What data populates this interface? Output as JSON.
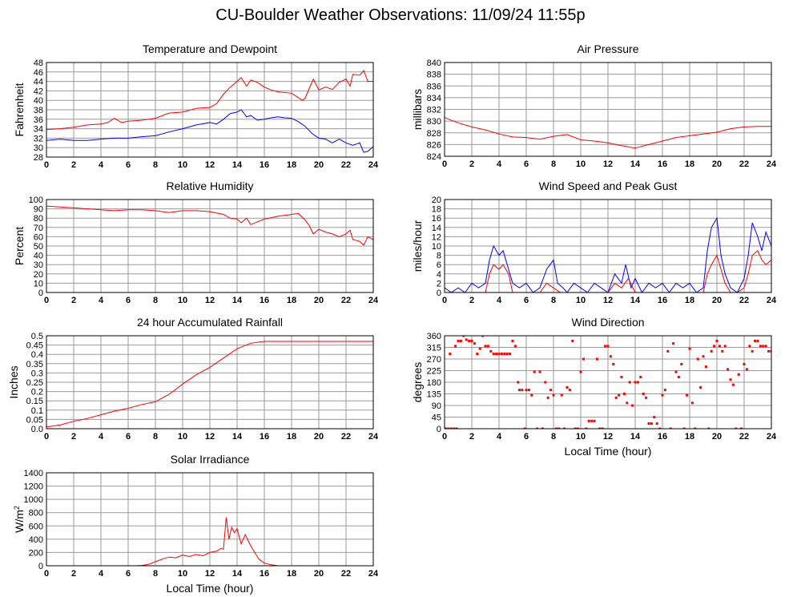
{
  "page": {
    "title": "CU-Boulder Weather Observations: 11/09/24 11:55p"
  },
  "chart_data": [
    {
      "id": "temperature",
      "type": "line",
      "title": "Temperature and Dewpoint",
      "xlabel": "",
      "ylabel": "Fahrenheit",
      "xlim": [
        0,
        24
      ],
      "ylim": [
        28,
        48
      ],
      "xticks": [
        0,
        2,
        4,
        6,
        8,
        10,
        12,
        14,
        16,
        18,
        20,
        22,
        24
      ],
      "yticks": [
        28,
        30,
        32,
        34,
        36,
        38,
        40,
        42,
        44,
        46,
        48
      ],
      "grid": true,
      "series": [
        {
          "color": "#ff0000",
          "x": [
            0,
            1,
            2,
            3,
            4,
            4.5,
            5,
            5.5,
            6,
            7,
            8,
            9,
            10,
            11,
            12,
            12.5,
            13,
            13.5,
            14,
            14.3,
            14.7,
            15,
            15.5,
            16,
            16.5,
            17,
            18,
            18.8,
            19,
            19.3,
            19.6,
            20,
            20.5,
            21,
            21.5,
            22,
            22.3,
            22.5,
            23,
            23.3,
            23.6,
            24
          ],
          "y": [
            33.8,
            34.0,
            34.3,
            34.8,
            35.0,
            35.3,
            36.2,
            35.3,
            35.6,
            35.8,
            36.2,
            37.3,
            37.5,
            38.3,
            38.5,
            39.3,
            41.3,
            42.8,
            44.0,
            44.8,
            43.0,
            44.3,
            43.8,
            42.8,
            42.2,
            41.8,
            41.5,
            40.0,
            40.5,
            42.5,
            44.5,
            42.2,
            42.8,
            42.3,
            43.8,
            44.5,
            43.0,
            45.5,
            45.3,
            46.3,
            44.0,
            44.0
          ]
        },
        {
          "color": "#0000ff",
          "x": [
            0,
            1,
            2,
            3,
            4,
            5,
            6,
            7,
            8,
            9,
            10,
            11,
            12,
            12.5,
            13,
            13.5,
            14,
            14.3,
            14.7,
            15,
            15.5,
            16,
            16.5,
            17,
            17.5,
            18,
            18.5,
            19,
            19.5,
            20,
            20.5,
            21,
            21.5,
            22,
            22.5,
            23,
            23.3,
            23.6,
            24
          ],
          "y": [
            31.5,
            31.8,
            31.5,
            31.5,
            31.8,
            32.0,
            32.0,
            32.3,
            32.5,
            33.3,
            34.0,
            34.8,
            35.3,
            35.0,
            36.0,
            37.2,
            37.5,
            38.0,
            36.5,
            36.8,
            35.8,
            36.0,
            36.3,
            36.5,
            36.3,
            36.2,
            35.5,
            34.5,
            33.0,
            32.0,
            31.8,
            31.0,
            31.8,
            31.0,
            30.5,
            31.0,
            29.0,
            29.2,
            30.2
          ]
        }
      ]
    },
    {
      "id": "pressure",
      "type": "line",
      "title": "Air Pressure",
      "xlabel": "",
      "ylabel": "millibars",
      "xlim": [
        0,
        24
      ],
      "ylim": [
        824,
        840
      ],
      "xticks": [
        0,
        2,
        4,
        6,
        8,
        10,
        12,
        14,
        16,
        18,
        20,
        22,
        24
      ],
      "yticks": [
        824,
        826,
        828,
        830,
        832,
        834,
        836,
        838,
        840
      ],
      "grid": true,
      "series": [
        {
          "color": "#ff0000",
          "x": [
            0,
            1,
            2,
            3,
            4,
            5,
            6,
            7,
            8,
            9,
            10,
            11,
            12,
            13,
            14,
            15,
            16,
            17,
            18,
            19,
            20,
            21,
            22,
            23,
            24
          ],
          "y": [
            830.6,
            829.7,
            829.0,
            828.5,
            827.8,
            827.3,
            827.2,
            826.9,
            827.4,
            827.7,
            826.8,
            826.6,
            826.3,
            825.8,
            825.4,
            826.0,
            826.6,
            827.2,
            827.5,
            827.8,
            828.1,
            828.7,
            829.0,
            829.1,
            829.1
          ]
        }
      ]
    },
    {
      "id": "humidity",
      "type": "line",
      "title": "Relative Humidity",
      "xlabel": "",
      "ylabel": "Percent",
      "xlim": [
        0,
        24
      ],
      "ylim": [
        0,
        100
      ],
      "xticks": [
        0,
        2,
        4,
        6,
        8,
        10,
        12,
        14,
        16,
        18,
        20,
        22,
        24
      ],
      "yticks": [
        0,
        10,
        20,
        30,
        40,
        50,
        60,
        70,
        80,
        90,
        100
      ],
      "grid": true,
      "series": [
        {
          "color": "#ff0000",
          "x": [
            0,
            1,
            2,
            3,
            4,
            5,
            6,
            7,
            8,
            9,
            10,
            11,
            12,
            13,
            13.5,
            14,
            14.3,
            14.7,
            15,
            15.5,
            16,
            17,
            18,
            18.5,
            19,
            19.3,
            19.6,
            20,
            20.5,
            21,
            21.5,
            22,
            22.3,
            22.5,
            23,
            23.3,
            23.6,
            24
          ],
          "y": [
            93,
            92,
            91,
            90,
            89,
            88,
            89,
            89,
            88,
            86,
            88,
            88,
            87,
            84,
            80,
            79,
            75,
            80,
            73,
            76,
            79,
            82,
            84,
            85,
            78,
            72,
            63,
            68,
            65,
            63,
            60,
            63,
            67,
            57,
            55,
            51,
            60,
            57
          ]
        }
      ]
    },
    {
      "id": "wind-speed",
      "type": "line",
      "title": "Wind Speed and Peak Gust",
      "xlabel": "",
      "ylabel": "miles/hour",
      "xlim": [
        0,
        24
      ],
      "ylim": [
        0,
        20
      ],
      "xticks": [
        0,
        2,
        4,
        6,
        8,
        10,
        12,
        14,
        16,
        18,
        20,
        22,
        24
      ],
      "yticks": [
        0,
        2,
        4,
        6,
        8,
        10,
        12,
        14,
        16,
        18,
        20
      ],
      "grid": true,
      "series": [
        {
          "color": "#0000ff",
          "x": [
            0,
            0.5,
            1,
            1.5,
            2,
            2.5,
            3,
            3.3,
            3.6,
            4,
            4.3,
            4.7,
            5,
            5.5,
            6,
            6.5,
            7,
            7.5,
            8,
            8.3,
            8.7,
            9,
            9.5,
            10,
            10.5,
            11,
            11.5,
            12,
            12.5,
            13,
            13.3,
            13.7,
            14,
            14.5,
            15,
            15.5,
            16,
            16.5,
            17,
            17.5,
            18,
            18.5,
            19,
            19.3,
            19.6,
            20,
            20.3,
            20.6,
            21,
            21.5,
            22,
            22.3,
            22.6,
            23,
            23.3,
            23.6,
            24
          ],
          "y": [
            1,
            0,
            1,
            0,
            2,
            1,
            2,
            7,
            10,
            8,
            9,
            5,
            2,
            1,
            2,
            0,
            1,
            5,
            7,
            2,
            1,
            0,
            2,
            1,
            0,
            2,
            1,
            0,
            4,
            2,
            6,
            1,
            3,
            0,
            2,
            1,
            2,
            0,
            2,
            1,
            2,
            0,
            1,
            9,
            14,
            16,
            8,
            4,
            1,
            0,
            3,
            8,
            15,
            12,
            9,
            13,
            10
          ]
        },
        {
          "color": "#ff0000",
          "x": [
            0,
            3,
            3.3,
            3.6,
            4,
            4.3,
            4.7,
            5,
            6,
            7,
            7.5,
            8,
            8.5,
            9,
            10,
            11,
            12,
            12.5,
            13,
            13.5,
            14,
            15,
            16,
            17,
            18,
            19,
            19.3,
            19.6,
            20,
            20.3,
            20.6,
            21,
            21.5,
            22,
            22.3,
            22.6,
            23,
            23.3,
            23.6,
            24
          ],
          "y": [
            0,
            0,
            4,
            6,
            5,
            6,
            4,
            0,
            0,
            0,
            2,
            1,
            0,
            0,
            0,
            0,
            0,
            2,
            1,
            3,
            0,
            0,
            0,
            0,
            0,
            0,
            4,
            6,
            8,
            5,
            2,
            0,
            0,
            1,
            4,
            8,
            9,
            7,
            6,
            7
          ]
        }
      ]
    },
    {
      "id": "rainfall",
      "type": "line",
      "title": "24 hour Accumulated Rainfall",
      "xlabel": "",
      "ylabel": "Inches",
      "xlim": [
        0,
        24
      ],
      "ylim": [
        0,
        0.5
      ],
      "xticks": [
        0,
        2,
        4,
        6,
        8,
        10,
        12,
        14,
        16,
        18,
        20,
        22,
        24
      ],
      "yticks": [
        "0.0",
        "0.05",
        "0.1",
        "0.15",
        "0.2",
        "0.25",
        "0.3",
        "0.35",
        "0.4",
        "0.45",
        "0.5"
      ],
      "grid": true,
      "series": [
        {
          "color": "#ff0000",
          "x": [
            0,
            1,
            2,
            3,
            4,
            5,
            6,
            7,
            8,
            9,
            10,
            11,
            12,
            13,
            14,
            15,
            16,
            17,
            18,
            19,
            20,
            21,
            22,
            23,
            24
          ],
          "y": [
            0.01,
            0.02,
            0.04,
            0.055,
            0.075,
            0.095,
            0.11,
            0.13,
            0.145,
            0.185,
            0.24,
            0.29,
            0.33,
            0.38,
            0.43,
            0.46,
            0.47,
            0.47,
            0.47,
            0.47,
            0.47,
            0.47,
            0.47,
            0.47,
            0.47
          ]
        }
      ]
    },
    {
      "id": "wind-direction",
      "type": "scatter",
      "title": "Wind Direction",
      "xlabel": "Local Time (hour)",
      "ylabel": "degrees",
      "xlim": [
        0,
        24
      ],
      "ylim": [
        0,
        360
      ],
      "xticks": [
        0,
        2,
        4,
        6,
        8,
        10,
        12,
        14,
        16,
        18,
        20,
        22,
        24
      ],
      "yticks": [
        0,
        45,
        90,
        135,
        180,
        225,
        270,
        315,
        360
      ],
      "grid": true,
      "series": [
        {
          "color": "#ff0000",
          "x": [
            0.1,
            0.3,
            0.5,
            0.7,
            0.9,
            0.4,
            0.8,
            1.0,
            1.2,
            1.4,
            1.6,
            1.8,
            2.0,
            2.2,
            2.4,
            2.6,
            2.8,
            3.0,
            3.2,
            3.4,
            3.6,
            3.8,
            4.0,
            4.2,
            4.4,
            4.6,
            4.8,
            5.0,
            5.2,
            5.4,
            5.5,
            5.7,
            5.9,
            6.0,
            6.2,
            6.4,
            6.6,
            6.8,
            7.0,
            7.2,
            7.4,
            7.6,
            7.8,
            8.0,
            8.2,
            8.4,
            8.6,
            8.8,
            9.0,
            9.2,
            9.4,
            9.6,
            9.8,
            10.0,
            10.2,
            10.4,
            10.6,
            10.8,
            11.0,
            11.2,
            11.4,
            11.6,
            11.8,
            12.0,
            12.2,
            12.4,
            12.6,
            12.8,
            13.0,
            13.2,
            13.4,
            13.6,
            13.8,
            14.0,
            14.2,
            14.4,
            14.6,
            14.8,
            15.0,
            15.2,
            15.4,
            15.6,
            15.8,
            16.0,
            16.2,
            16.4,
            16.6,
            16.8,
            17.0,
            17.2,
            17.4,
            17.6,
            17.8,
            18.0,
            18.2,
            18.4,
            18.6,
            18.8,
            19.0,
            19.2,
            19.4,
            19.6,
            19.8,
            20.0,
            20.2,
            20.4,
            20.6,
            20.8,
            21.0,
            21.2,
            21.4,
            21.6,
            21.8,
            22.0,
            22.2,
            22.4,
            22.6,
            22.8,
            23.0,
            23.2,
            23.4,
            23.6,
            23.8,
            24.0
          ],
          "y": [
            0,
            0,
            0,
            0,
            0,
            290,
            320,
            340,
            340,
            360,
            345,
            340,
            340,
            330,
            290,
            310,
            360,
            320,
            320,
            300,
            290,
            290,
            290,
            290,
            290,
            290,
            290,
            340,
            320,
            180,
            150,
            150,
            0,
            150,
            150,
            130,
            220,
            0,
            220,
            0,
            180,
            120,
            150,
            130,
            0,
            0,
            130,
            0,
            160,
            150,
            340,
            0,
            0,
            220,
            270,
            0,
            30,
            30,
            30,
            270,
            0,
            0,
            320,
            320,
            280,
            250,
            120,
            130,
            200,
            135,
            100,
            180,
            90,
            180,
            180,
            200,
            135,
            120,
            20,
            20,
            45,
            20,
            0,
            130,
            150,
            300,
            0,
            330,
            220,
            200,
            250,
            0,
            130,
            310,
            100,
            0,
            270,
            160,
            280,
            240,
            0,
            300,
            320,
            340,
            320,
            300,
            320,
            230,
            190,
            170,
            0,
            210,
            0,
            250,
            230,
            320,
            300,
            340,
            340,
            320,
            320,
            320,
            300,
            300
          ]
        }
      ]
    },
    {
      "id": "solar",
      "type": "line",
      "title": "Solar Irradiance",
      "xlabel": "Local Time (hour)",
      "ylabel": "W/m",
      "ylabel_sup": "2",
      "xlim": [
        0,
        24
      ],
      "ylim": [
        0,
        1400
      ],
      "xticks": [
        0,
        2,
        4,
        6,
        8,
        10,
        12,
        14,
        16,
        18,
        20,
        22,
        24
      ],
      "yticks": [
        0,
        200,
        400,
        600,
        800,
        1000,
        1200,
        1400
      ],
      "grid": true,
      "series": [
        {
          "color": "#ff0000",
          "x": [
            0,
            6.5,
            7,
            7.5,
            8,
            8.5,
            9,
            9.5,
            10,
            10.5,
            11,
            11.5,
            12,
            12.5,
            12.8,
            13,
            13.2,
            13.4,
            13.6,
            13.8,
            14,
            14.3,
            14.6,
            15,
            15.3,
            15.6,
            16,
            16.5,
            17,
            24
          ],
          "y": [
            0,
            0,
            5,
            20,
            60,
            100,
            130,
            120,
            160,
            140,
            170,
            150,
            200,
            220,
            260,
            250,
            730,
            400,
            580,
            500,
            560,
            330,
            470,
            300,
            200,
            100,
            40,
            15,
            0,
            0
          ]
        }
      ]
    }
  ]
}
